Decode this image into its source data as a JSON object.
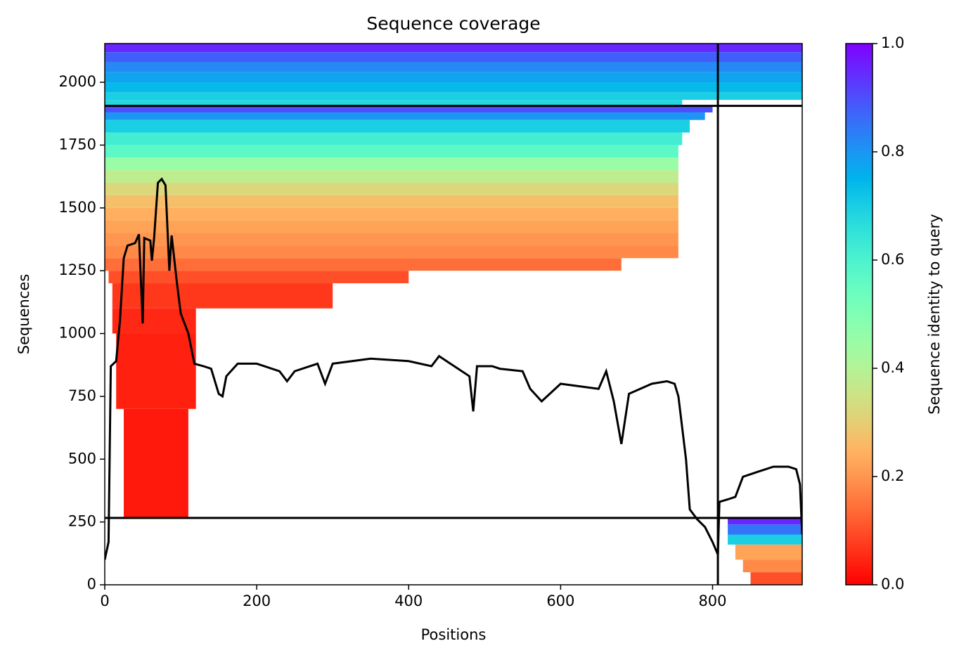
{
  "chart_data": {
    "type": "heatmap",
    "title": "Sequence coverage",
    "xlabel": "Positions",
    "ylabel": "Sequences",
    "xlim": [
      0,
      918
    ],
    "ylim": [
      0,
      2154
    ],
    "xticks": [
      0,
      200,
      400,
      600,
      800
    ],
    "yticks": [
      0,
      250,
      500,
      750,
      1000,
      1250,
      1500,
      1750,
      2000
    ],
    "colormap": "rainbow_r",
    "bands": [
      {
        "x0": 0,
        "x1": 918,
        "y0": 2120,
        "y1": 2154,
        "identity": 0.95
      },
      {
        "x0": 0,
        "x1": 918,
        "y0": 2080,
        "y1": 2120,
        "identity": 0.88
      },
      {
        "x0": 0,
        "x1": 918,
        "y0": 2040,
        "y1": 2080,
        "identity": 0.82
      },
      {
        "x0": 0,
        "x1": 918,
        "y0": 2000,
        "y1": 2040,
        "identity": 0.78
      },
      {
        "x0": 0,
        "x1": 918,
        "y0": 1960,
        "y1": 2000,
        "identity": 0.74
      },
      {
        "x0": 0,
        "x1": 918,
        "y0": 1930,
        "y1": 1960,
        "identity": 0.7
      },
      {
        "x0": 0,
        "x1": 760,
        "y0": 1906,
        "y1": 1930,
        "identity": 0.68
      },
      {
        "x0": 0,
        "x1": 800,
        "y0": 1880,
        "y1": 1906,
        "identity": 0.9
      },
      {
        "x0": 0,
        "x1": 790,
        "y0": 1850,
        "y1": 1880,
        "identity": 0.8
      },
      {
        "x0": 0,
        "x1": 770,
        "y0": 1800,
        "y1": 1850,
        "identity": 0.7
      },
      {
        "x0": 0,
        "x1": 760,
        "y0": 1750,
        "y1": 1800,
        "identity": 0.62
      },
      {
        "x0": 0,
        "x1": 755,
        "y0": 1700,
        "y1": 1750,
        "identity": 0.57
      },
      {
        "x0": 0,
        "x1": 755,
        "y0": 1650,
        "y1": 1700,
        "identity": 0.45
      },
      {
        "x0": 0,
        "x1": 755,
        "y0": 1600,
        "y1": 1650,
        "identity": 0.38
      },
      {
        "x0": 0,
        "x1": 755,
        "y0": 1550,
        "y1": 1600,
        "identity": 0.32
      },
      {
        "x0": 0,
        "x1": 755,
        "y0": 1500,
        "y1": 1550,
        "identity": 0.27
      },
      {
        "x0": 0,
        "x1": 755,
        "y0": 1450,
        "y1": 1500,
        "identity": 0.24
      },
      {
        "x0": 0,
        "x1": 755,
        "y0": 1400,
        "y1": 1450,
        "identity": 0.22
      },
      {
        "x0": 0,
        "x1": 755,
        "y0": 1350,
        "y1": 1400,
        "identity": 0.2
      },
      {
        "x0": 0,
        "x1": 755,
        "y0": 1300,
        "y1": 1350,
        "identity": 0.18
      },
      {
        "x0": 0,
        "x1": 680,
        "y0": 1250,
        "y1": 1300,
        "identity": 0.14
      },
      {
        "x0": 5,
        "x1": 400,
        "y0": 1200,
        "y1": 1250,
        "identity": 0.1
      },
      {
        "x0": 10,
        "x1": 300,
        "y0": 1100,
        "y1": 1200,
        "identity": 0.07
      },
      {
        "x0": 10,
        "x1": 120,
        "y0": 1000,
        "y1": 1100,
        "identity": 0.05
      },
      {
        "x0": 15,
        "x1": 120,
        "y0": 700,
        "y1": 1000,
        "identity": 0.04
      },
      {
        "x0": 25,
        "x1": 110,
        "y0": 270,
        "y1": 700,
        "identity": 0.03
      },
      {
        "x0": 820,
        "x1": 918,
        "y0": 240,
        "y1": 266,
        "identity": 0.95
      },
      {
        "x0": 820,
        "x1": 918,
        "y0": 200,
        "y1": 240,
        "identity": 0.85
      },
      {
        "x0": 820,
        "x1": 918,
        "y0": 160,
        "y1": 200,
        "identity": 0.7
      },
      {
        "x0": 830,
        "x1": 918,
        "y0": 100,
        "y1": 160,
        "identity": 0.22
      },
      {
        "x0": 840,
        "x1": 918,
        "y0": 50,
        "y1": 100,
        "identity": 0.18
      },
      {
        "x0": 850,
        "x1": 918,
        "y0": 0,
        "y1": 50,
        "identity": 0.1
      }
    ],
    "boundaries": {
      "x": [
        807
      ],
      "y": [
        266,
        1906
      ]
    },
    "coverage": {
      "color": "#000000",
      "x": [
        0,
        5,
        8,
        15,
        20,
        25,
        30,
        40,
        45,
        50,
        52,
        60,
        62,
        65,
        70,
        75,
        80,
        85,
        88,
        95,
        100,
        110,
        118,
        130,
        140,
        150,
        155,
        160,
        175,
        200,
        230,
        240,
        250,
        280,
        290,
        300,
        350,
        400,
        430,
        440,
        460,
        480,
        485,
        490,
        510,
        520,
        550,
        560,
        575,
        600,
        650,
        660,
        670,
        680,
        690,
        720,
        740,
        750,
        755,
        765,
        770,
        780,
        790,
        800,
        807,
        809,
        820,
        830,
        840,
        850,
        860,
        870,
        880,
        900,
        910,
        915,
        918
      ],
      "values": [
        100,
        170,
        870,
        890,
        1050,
        1300,
        1350,
        1360,
        1395,
        1040,
        1380,
        1370,
        1290,
        1380,
        1600,
        1615,
        1590,
        1250,
        1390,
        1200,
        1080,
        1000,
        880,
        870,
        860,
        760,
        750,
        830,
        880,
        880,
        850,
        810,
        850,
        880,
        800,
        880,
        900,
        890,
        870,
        910,
        870,
        830,
        690,
        870,
        870,
        860,
        850,
        780,
        730,
        800,
        780,
        850,
        730,
        560,
        760,
        800,
        810,
        800,
        750,
        500,
        300,
        260,
        230,
        170,
        120,
        330,
        340,
        350,
        430,
        440,
        450,
        460,
        470,
        470,
        460,
        400,
        200
      ]
    },
    "colorbar": {
      "label": "Sequence identity to query",
      "lim": [
        0,
        1
      ],
      "ticks": [
        {
          "value": 0,
          "label": "0.0"
        },
        {
          "value": 0.2,
          "label": "0.2"
        },
        {
          "value": 0.4,
          "label": "0.4"
        },
        {
          "value": 0.6,
          "label": "0.6"
        },
        {
          "value": 0.8,
          "label": "0.8"
        },
        {
          "value": 1,
          "label": "1.0"
        }
      ]
    }
  }
}
